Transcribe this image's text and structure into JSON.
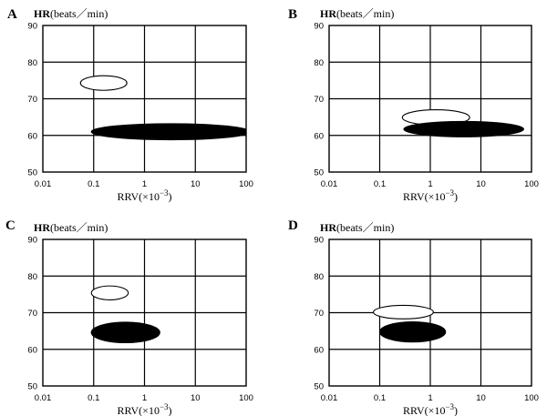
{
  "chart_data": [
    {
      "type": "scatter",
      "panel": "A",
      "ylabel_bold": "HR",
      "ylabel_rest": "(beats／min)",
      "xlabel_base": "RRV(×10",
      "xlabel_exp": "−3",
      "xlabel_close": ")",
      "x_scale": "log",
      "xlim": [
        0.01,
        100
      ],
      "ylim": [
        50,
        90
      ],
      "x_ticks": [
        "0.01",
        "0.1",
        "1",
        "10",
        "100"
      ],
      "y_ticks": [
        "90",
        "80",
        "70",
        "60",
        "50"
      ],
      "grid": true,
      "regions": [
        {
          "fill": "white",
          "x_range": [
            0.055,
            0.45
          ],
          "y_range": [
            72.3,
            76.3
          ]
        },
        {
          "fill": "black",
          "x_range": [
            0.09,
            120
          ],
          "y_range": [
            58.8,
            63.2
          ]
        }
      ]
    },
    {
      "type": "scatter",
      "panel": "B",
      "ylabel_bold": "HR",
      "ylabel_rest": "(beats／min)",
      "xlabel_base": "RRV(×10",
      "xlabel_exp": "−3",
      "xlabel_close": ")",
      "x_scale": "log",
      "xlim": [
        0.01,
        100
      ],
      "ylim": [
        50,
        90
      ],
      "x_ticks": [
        "0.01",
        "0.1",
        "1",
        "10",
        "100"
      ],
      "y_ticks": [
        "90",
        "80",
        "70",
        "60",
        "50"
      ],
      "grid": true,
      "regions": [
        {
          "fill": "white",
          "x_range": [
            0.28,
            6.0
          ],
          "y_range": [
            62.8,
            67.0
          ]
        },
        {
          "fill": "black",
          "x_range": [
            0.3,
            70
          ],
          "y_range": [
            59.6,
            63.8
          ]
        }
      ]
    },
    {
      "type": "scatter",
      "panel": "C",
      "ylabel_bold": "HR",
      "ylabel_rest": "(beats／min)",
      "xlabel_base": "RRV(×10",
      "xlabel_exp": "−3",
      "xlabel_close": ")",
      "x_scale": "log",
      "xlim": [
        0.01,
        100
      ],
      "ylim": [
        50,
        90
      ],
      "x_ticks": [
        "0.01",
        "0.1",
        "1",
        "10",
        "100"
      ],
      "y_ticks": [
        "90",
        "80",
        "70",
        "60",
        "50"
      ],
      "grid": true,
      "regions": [
        {
          "fill": "white",
          "x_range": [
            0.09,
            0.48
          ],
          "y_range": [
            73.5,
            77.3
          ]
        },
        {
          "fill": "black",
          "x_range": [
            0.09,
            2.0
          ],
          "y_range": [
            61.8,
            67.4
          ]
        }
      ]
    },
    {
      "type": "scatter",
      "panel": "D",
      "ylabel_bold": "HR",
      "ylabel_rest": "(beats／min)",
      "xlabel_base": "RRV(×10",
      "xlabel_exp": "−3",
      "xlabel_close": ")",
      "x_scale": "log",
      "xlim": [
        0.01,
        100
      ],
      "ylim": [
        50,
        90
      ],
      "x_ticks": [
        "0.01",
        "0.1",
        "1",
        "10",
        "100"
      ],
      "y_ticks": [
        "90",
        "80",
        "70",
        "60",
        "50"
      ],
      "grid": true,
      "regions": [
        {
          "fill": "white",
          "x_range": [
            0.075,
            1.15
          ],
          "y_range": [
            68.3,
            72.0
          ]
        },
        {
          "fill": "black",
          "x_range": [
            0.1,
            2.0
          ],
          "y_range": [
            62.0,
            67.5
          ]
        }
      ]
    }
  ]
}
